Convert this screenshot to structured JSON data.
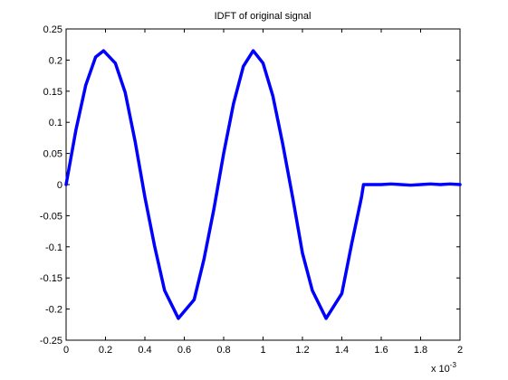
{
  "chart_data": {
    "type": "line",
    "title": "IDFT of original signal",
    "xlabel": "",
    "ylabel": "",
    "xlim": [
      0,
      2
    ],
    "ylim": [
      -0.25,
      0.25
    ],
    "x_multiplier_label": {
      "base": "x 10",
      "exponent": "-3"
    },
    "x_ticks": [
      "0",
      "0.2",
      "0.4",
      "0.6",
      "0.8",
      "1",
      "1.2",
      "1.4",
      "1.6",
      "1.8",
      "2"
    ],
    "x_tick_values": [
      0,
      0.2,
      0.4,
      0.6,
      0.8,
      1.0,
      1.2,
      1.4,
      1.6,
      1.8,
      2.0
    ],
    "y_ticks": [
      "0.25",
      "0.2",
      "0.15",
      "0.1",
      "0.05",
      "0",
      "-0.05",
      "-0.1",
      "-0.15",
      "-0.2",
      "-0.25"
    ],
    "y_tick_values": [
      0.25,
      0.2,
      0.15,
      0.1,
      0.05,
      0,
      -0.05,
      -0.1,
      -0.15,
      -0.2,
      -0.25
    ],
    "grid": false,
    "series": [
      {
        "color": "#0000ff",
        "x": [
          0,
          0.05,
          0.1,
          0.15,
          0.19,
          0.25,
          0.3,
          0.35,
          0.4,
          0.45,
          0.5,
          0.57,
          0.65,
          0.7,
          0.75,
          0.8,
          0.85,
          0.9,
          0.95,
          1.0,
          1.05,
          1.1,
          1.15,
          1.2,
          1.25,
          1.32,
          1.4,
          1.45,
          1.5,
          1.51,
          1.55,
          1.6,
          1.65,
          1.7,
          1.75,
          1.8,
          1.85,
          1.9,
          1.95,
          2.0
        ],
        "y": [
          0,
          0.088,
          0.16,
          0.205,
          0.215,
          0.195,
          0.148,
          0.07,
          -0.02,
          -0.1,
          -0.17,
          -0.215,
          -0.185,
          -0.12,
          -0.04,
          0.05,
          0.13,
          0.19,
          0.215,
          0.195,
          0.142,
          0.065,
          -0.02,
          -0.11,
          -0.17,
          -0.215,
          -0.175,
          -0.095,
          -0.02,
          0,
          0,
          0,
          0.001,
          0,
          -0.001,
          0,
          0.001,
          0,
          0.001,
          0
        ]
      }
    ]
  }
}
